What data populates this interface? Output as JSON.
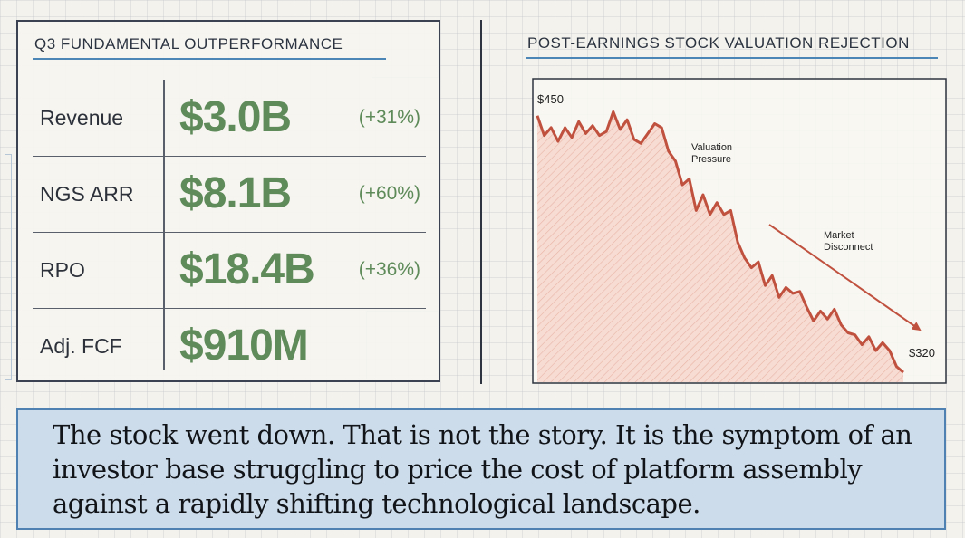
{
  "left_panel": {
    "title": "Q3 FUNDAMENTAL OUTPERFORMANCE",
    "metrics": [
      {
        "label": "Revenue",
        "value": "$3.0B",
        "change": "(+31%)"
      },
      {
        "label": "NGS ARR",
        "value": "$8.1B",
        "change": "(+60%)"
      },
      {
        "label": "RPO",
        "value": "$18.4B",
        "change": "(+36%)"
      },
      {
        "label": "Adj. FCF",
        "value": "$910M",
        "change": ""
      }
    ]
  },
  "right_panel": {
    "title": "POST-EARNINGS STOCK VALUATION REJECTION"
  },
  "chart_data": {
    "type": "area",
    "title": "POST-EARNINGS STOCK VALUATION REJECTION",
    "xlabel": "",
    "ylabel": "",
    "start_label": "$450",
    "end_label": "$320",
    "ylim": [
      315,
      460
    ],
    "y": [
      450,
      440,
      444,
      437,
      444,
      439,
      447,
      441,
      445,
      440,
      442,
      452,
      443,
      448,
      438,
      436,
      441,
      446,
      444,
      432,
      427,
      415,
      418,
      402,
      410,
      400,
      406,
      400,
      402,
      386,
      378,
      373,
      376,
      364,
      369,
      358,
      363,
      360,
      361,
      353,
      346,
      351,
      347,
      352,
      344,
      340,
      339,
      334,
      338,
      331,
      335,
      331,
      323,
      320
    ],
    "annotations": [
      {
        "text": "Valuation Pressure"
      },
      {
        "text": "Market Disconnect"
      }
    ],
    "colors": {
      "line": "#c0513f",
      "fill": "#f6d6cd",
      "value_text": "#5f8b5a",
      "accent": "#4f82b3"
    },
    "grid": false
  },
  "caption": "The stock went down. That is not the story. It is the symptom of an investor base struggling to price the cost of platform assembly against a rapidly shifting technological landscape."
}
